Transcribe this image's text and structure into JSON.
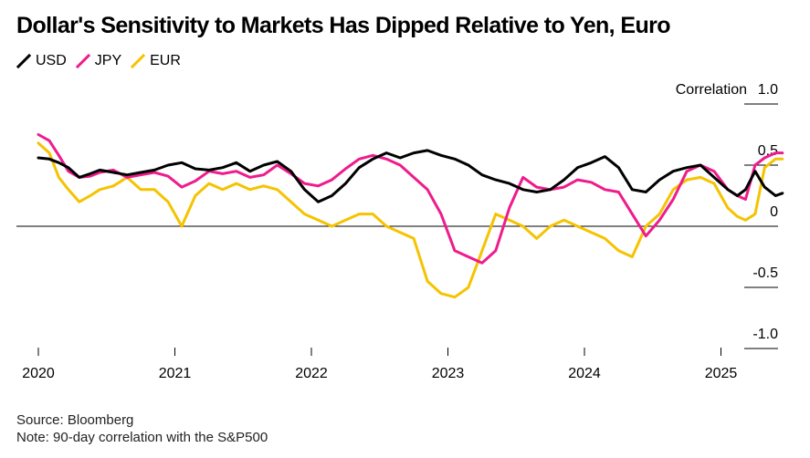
{
  "title": "Dollar's Sensitivity to Markets Has Dipped Relative to Yen, Euro",
  "source": "Source: Bloomberg",
  "note": "Note: 90-day correlation with the S&P500",
  "colors": {
    "USD": "#000000",
    "JPY": "#ee1c8c",
    "EUR": "#f5c300"
  },
  "chart_data": {
    "type": "line",
    "title": "Dollar's Sensitivity to Markets Has Dipped Relative to Yen, Euro",
    "ylabel": "Correlation",
    "ylim": [
      -1.0,
      1.0
    ],
    "yticks": [
      1.0,
      0.5,
      0,
      -0.5,
      -1.0
    ],
    "ytick_labels": [
      "1.0",
      "0.5",
      "0",
      "-0.5",
      "-1.0"
    ],
    "xlim": [
      2020.0,
      2025.55
    ],
    "xticks": [
      2020,
      2021,
      2022,
      2023,
      2024,
      2025
    ],
    "xtick_labels": [
      "2020",
      "2021",
      "2022",
      "2023",
      "2024",
      "2025"
    ],
    "legend_position": "top-left",
    "grid": "horizontal",
    "series": [
      {
        "name": "USD",
        "x": [
          2020.0,
          2020.08,
          2020.15,
          2020.22,
          2020.3,
          2020.38,
          2020.45,
          2020.55,
          2020.65,
          2020.75,
          2020.85,
          2020.95,
          2021.05,
          2021.15,
          2021.25,
          2021.35,
          2021.45,
          2021.55,
          2021.65,
          2021.75,
          2021.85,
          2021.95,
          2022.05,
          2022.15,
          2022.25,
          2022.35,
          2022.45,
          2022.55,
          2022.65,
          2022.75,
          2022.85,
          2022.95,
          2023.05,
          2023.15,
          2023.25,
          2023.35,
          2023.45,
          2023.55,
          2023.65,
          2023.75,
          2023.85,
          2023.95,
          2024.05,
          2024.15,
          2024.25,
          2024.35,
          2024.45,
          2024.55,
          2024.65,
          2024.75,
          2024.85,
          2024.95,
          2025.05,
          2025.12,
          2025.18,
          2025.25,
          2025.32,
          2025.4,
          2025.45
        ],
        "values": [
          0.56,
          0.55,
          0.52,
          0.48,
          0.4,
          0.43,
          0.46,
          0.44,
          0.42,
          0.44,
          0.46,
          0.5,
          0.52,
          0.47,
          0.46,
          0.48,
          0.52,
          0.45,
          0.5,
          0.53,
          0.45,
          0.3,
          0.2,
          0.25,
          0.35,
          0.48,
          0.55,
          0.6,
          0.56,
          0.6,
          0.62,
          0.58,
          0.55,
          0.5,
          0.42,
          0.38,
          0.35,
          0.3,
          0.28,
          0.3,
          0.38,
          0.48,
          0.52,
          0.57,
          0.48,
          0.3,
          0.28,
          0.38,
          0.45,
          0.48,
          0.5,
          0.4,
          0.3,
          0.25,
          0.3,
          0.45,
          0.32,
          0.25,
          0.27
        ]
      },
      {
        "name": "JPY",
        "x": [
          2020.0,
          2020.08,
          2020.15,
          2020.22,
          2020.3,
          2020.38,
          2020.45,
          2020.55,
          2020.65,
          2020.75,
          2020.85,
          2020.95,
          2021.05,
          2021.15,
          2021.25,
          2021.35,
          2021.45,
          2021.55,
          2021.65,
          2021.75,
          2021.85,
          2021.95,
          2022.05,
          2022.15,
          2022.25,
          2022.35,
          2022.45,
          2022.55,
          2022.65,
          2022.75,
          2022.85,
          2022.95,
          2023.05,
          2023.15,
          2023.25,
          2023.35,
          2023.45,
          2023.55,
          2023.65,
          2023.75,
          2023.85,
          2023.95,
          2024.05,
          2024.15,
          2024.25,
          2024.35,
          2024.45,
          2024.55,
          2024.65,
          2024.75,
          2024.85,
          2024.95,
          2025.05,
          2025.12,
          2025.18,
          2025.25,
          2025.32,
          2025.4,
          2025.45
        ],
        "values": [
          0.75,
          0.7,
          0.58,
          0.45,
          0.4,
          0.41,
          0.44,
          0.46,
          0.4,
          0.42,
          0.44,
          0.41,
          0.32,
          0.37,
          0.45,
          0.43,
          0.45,
          0.4,
          0.42,
          0.5,
          0.43,
          0.35,
          0.33,
          0.38,
          0.47,
          0.55,
          0.58,
          0.55,
          0.5,
          0.4,
          0.3,
          0.1,
          -0.2,
          -0.25,
          -0.3,
          -0.2,
          0.15,
          0.4,
          0.32,
          0.3,
          0.32,
          0.38,
          0.36,
          0.3,
          0.28,
          0.1,
          -0.08,
          0.05,
          0.22,
          0.45,
          0.5,
          0.45,
          0.3,
          0.25,
          0.22,
          0.5,
          0.56,
          0.6,
          0.6
        ]
      },
      {
        "name": "EUR",
        "x": [
          2020.0,
          2020.08,
          2020.15,
          2020.22,
          2020.3,
          2020.38,
          2020.45,
          2020.55,
          2020.65,
          2020.75,
          2020.85,
          2020.95,
          2021.05,
          2021.15,
          2021.25,
          2021.35,
          2021.45,
          2021.55,
          2021.65,
          2021.75,
          2021.85,
          2021.95,
          2022.05,
          2022.15,
          2022.25,
          2022.35,
          2022.45,
          2022.55,
          2022.65,
          2022.75,
          2022.85,
          2022.95,
          2023.05,
          2023.15,
          2023.25,
          2023.35,
          2023.45,
          2023.55,
          2023.65,
          2023.75,
          2023.85,
          2023.95,
          2024.05,
          2024.15,
          2024.25,
          2024.35,
          2024.45,
          2024.55,
          2024.65,
          2024.75,
          2024.85,
          2024.95,
          2025.05,
          2025.12,
          2025.18,
          2025.25,
          2025.32,
          2025.4,
          2025.45
        ],
        "values": [
          0.68,
          0.6,
          0.4,
          0.3,
          0.2,
          0.25,
          0.3,
          0.33,
          0.4,
          0.3,
          0.3,
          0.2,
          0.0,
          0.25,
          0.35,
          0.3,
          0.35,
          0.3,
          0.33,
          0.3,
          0.2,
          0.1,
          0.05,
          0.0,
          0.05,
          0.1,
          0.1,
          0.0,
          -0.05,
          -0.1,
          -0.45,
          -0.55,
          -0.58,
          -0.5,
          -0.2,
          0.1,
          0.05,
          0.0,
          -0.1,
          0.0,
          0.05,
          0.0,
          -0.05,
          -0.1,
          -0.2,
          -0.25,
          0.0,
          0.1,
          0.3,
          0.38,
          0.4,
          0.35,
          0.15,
          0.08,
          0.05,
          0.1,
          0.48,
          0.55,
          0.55
        ]
      }
    ]
  }
}
